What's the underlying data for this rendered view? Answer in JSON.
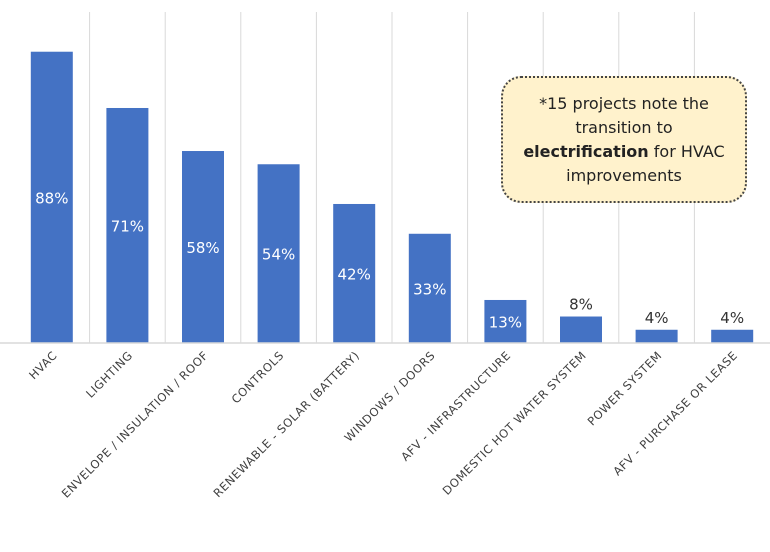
{
  "chart_data": {
    "type": "bar",
    "categories": [
      "HVAC",
      "LIGHTING",
      "ENVELOPE / INSULATION / ROOF",
      "CONTROLS",
      "RENEWABLE - SOLAR (BATTERY)",
      "WINDOWS / DOORS",
      "AFV - INFRASTRUCTURE",
      "DOMESTIC HOT WATER SYSTEM",
      "POWER SYSTEM",
      "AFV - PURCHASE OR LEASE"
    ],
    "values": [
      88,
      71,
      58,
      54,
      42,
      33,
      13,
      8,
      4,
      4
    ],
    "data_labels": [
      "88%",
      "71%",
      "58%",
      "54%",
      "42%",
      "33%",
      "13%",
      "8%",
      "4%",
      "4%"
    ],
    "ylim": [
      0,
      100
    ],
    "grid": "vertical",
    "colors": {
      "bar": "#4472c4",
      "label_inside": "#ffffff",
      "label_outside": "#333333",
      "axis_label": "#404040",
      "grid": "#d9d9d9",
      "callout_fill": "#fff2cc"
    },
    "annotation": {
      "pre": "*15 projects note the transition to",
      "bold": "electrification",
      "post": "for HVAC improvements"
    }
  }
}
